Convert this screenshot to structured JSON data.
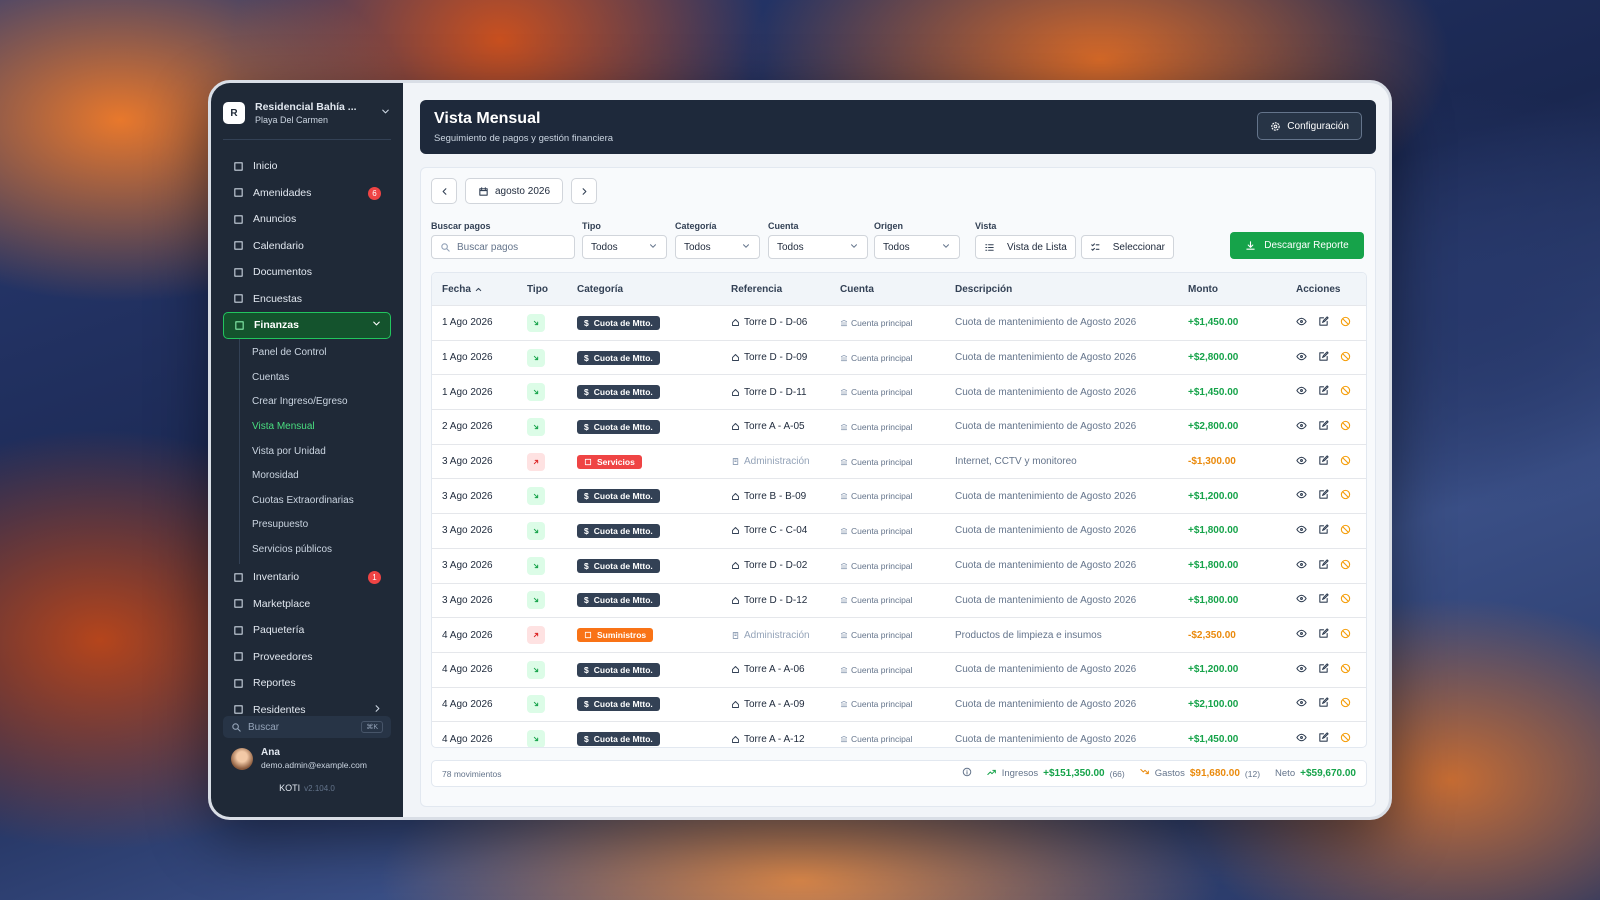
{
  "sidebar": {
    "org": {
      "avatar": "R",
      "name": "Residencial Bahía ...",
      "location": "Playa Del Carmen"
    },
    "nav": [
      {
        "label": "Inicio"
      },
      {
        "label": "Amenidades",
        "badge": 6
      },
      {
        "label": "Anuncios"
      },
      {
        "label": "Calendario"
      },
      {
        "label": "Documentos"
      },
      {
        "label": "Encuestas"
      },
      {
        "label": "Finanzas",
        "active": true,
        "children": [
          {
            "label": "Panel de Control"
          },
          {
            "label": "Cuentas"
          },
          {
            "label": "Crear Ingreso/Egreso"
          },
          {
            "label": "Vista Mensual",
            "active": true
          },
          {
            "label": "Vista por Unidad"
          },
          {
            "label": "Morosidad"
          },
          {
            "label": "Cuotas Extraordinarias"
          },
          {
            "label": "Presupuesto"
          },
          {
            "label": "Servicios públicos"
          }
        ]
      },
      {
        "label": "Inventario",
        "badge": 1
      },
      {
        "label": "Marketplace"
      },
      {
        "label": "Paquetería"
      },
      {
        "label": "Proveedores"
      },
      {
        "label": "Reportes"
      },
      {
        "label": "Residentes"
      }
    ],
    "search": {
      "placeholder": "Buscar",
      "shortcut": "⌘K"
    },
    "user": {
      "name": "Ana",
      "email": "demo.admin@example.com"
    },
    "footer": {
      "brand": "KOTI",
      "version": "v2.104.0"
    }
  },
  "header": {
    "title": "Vista Mensual",
    "subtitle": "Seguimiento de pagos y gestión financiera",
    "button": "Configuración"
  },
  "month": "agosto 2026",
  "filters": {
    "search": {
      "label": "Buscar pagos",
      "placeholder": "Buscar pagos"
    },
    "selects": [
      {
        "label": "Tipo",
        "value": "Todos"
      },
      {
        "label": "Categoría",
        "value": "Todos"
      },
      {
        "label": "Cuenta",
        "value": "Todos"
      },
      {
        "label": "Origen",
        "value": "Todos"
      }
    ],
    "view": {
      "label": "Vista",
      "list": "Vista de Lista",
      "select": "Seleccionar"
    },
    "download": "Descargar Reporte"
  },
  "table": {
    "columns": [
      "Fecha",
      "Tipo",
      "Categoría",
      "Referencia",
      "Cuenta",
      "Descripción",
      "Monto",
      "Acciones"
    ],
    "rows": [
      {
        "fecha": "1 Ago 2026",
        "categoria": "Cuota de Mtto.",
        "color": "#334155",
        "referencia": "Torre D - D-06",
        "cuenta": "Cuenta principal",
        "descripcion": "Cuota de mantenimiento de Agosto 2026",
        "monto": "+$1,450.00"
      },
      {
        "fecha": "1 Ago 2026",
        "categoria": "Cuota de Mtto.",
        "color": "#334155",
        "referencia": "Torre D - D-09",
        "cuenta": "Cuenta principal",
        "descripcion": "Cuota de mantenimiento de Agosto 2026",
        "monto": "+$2,800.00"
      },
      {
        "fecha": "1 Ago 2026",
        "categoria": "Cuota de Mtto.",
        "color": "#334155",
        "referencia": "Torre D - D-11",
        "cuenta": "Cuenta principal",
        "descripcion": "Cuota de mantenimiento de Agosto 2026",
        "monto": "+$1,450.00"
      },
      {
        "fecha": "2 Ago 2026",
        "categoria": "Cuota de Mtto.",
        "color": "#334155",
        "referencia": "Torre A - A-05",
        "cuenta": "Cuenta principal",
        "descripcion": "Cuota de mantenimiento de Agosto 2026",
        "monto": "+$2,800.00"
      },
      {
        "fecha": "3 Ago 2026",
        "categoria": "Servicios",
        "color": "#ef4444",
        "referencia": "Administración",
        "cuenta": "Cuenta principal",
        "descripcion": "Internet, CCTV y monitoreo",
        "monto": "-$1,300.00"
      },
      {
        "fecha": "3 Ago 2026",
        "categoria": "Cuota de Mtto.",
        "color": "#334155",
        "referencia": "Torre B - B-09",
        "cuenta": "Cuenta principal",
        "descripcion": "Cuota de mantenimiento de Agosto 2026",
        "monto": "+$1,200.00"
      },
      {
        "fecha": "3 Ago 2026",
        "categoria": "Cuota de Mtto.",
        "color": "#334155",
        "referencia": "Torre C - C-04",
        "cuenta": "Cuenta principal",
        "descripcion": "Cuota de mantenimiento de Agosto 2026",
        "monto": "+$1,800.00"
      },
      {
        "fecha": "3 Ago 2026",
        "categoria": "Cuota de Mtto.",
        "color": "#334155",
        "referencia": "Torre D - D-02",
        "cuenta": "Cuenta principal",
        "descripcion": "Cuota de mantenimiento de Agosto 2026",
        "monto": "+$1,800.00"
      },
      {
        "fecha": "3 Ago 2026",
        "categoria": "Cuota de Mtto.",
        "color": "#334155",
        "referencia": "Torre D - D-12",
        "cuenta": "Cuenta principal",
        "descripcion": "Cuota de mantenimiento de Agosto 2026",
        "monto": "+$1,800.00"
      },
      {
        "fecha": "4 Ago 2026",
        "categoria": "Suministros",
        "color": "#f97316",
        "referencia": "Administración",
        "cuenta": "Cuenta principal",
        "descripcion": "Productos de limpieza e insumos",
        "monto": "-$2,350.00"
      },
      {
        "fecha": "4 Ago 2026",
        "categoria": "Cuota de Mtto.",
        "color": "#334155",
        "referencia": "Torre A - A-06",
        "cuenta": "Cuenta principal",
        "descripcion": "Cuota de mantenimiento de Agosto 2026",
        "monto": "+$1,200.00"
      },
      {
        "fecha": "4 Ago 2026",
        "categoria": "Cuota de Mtto.",
        "color": "#334155",
        "referencia": "Torre A - A-09",
        "cuenta": "Cuenta principal",
        "descripcion": "Cuota de mantenimiento de Agosto 2026",
        "monto": "+$2,100.00"
      },
      {
        "fecha": "4 Ago 2026",
        "categoria": "Cuota de Mtto.",
        "color": "#334155",
        "referencia": "Torre A - A-12",
        "cuenta": "Cuenta principal",
        "descripcion": "Cuota de mantenimiento de Agosto 2026",
        "monto": "+$1,450.00"
      }
    ]
  },
  "summary": {
    "count": "78 movimientos",
    "income_label": "Ingresos",
    "income": "+$151,350.00",
    "income_count": "(66)",
    "expense_label": "Gastos",
    "expense": "$91,680.00",
    "expense_count": "(12)",
    "net_label": "Neto",
    "net": "+$59,670.00"
  }
}
